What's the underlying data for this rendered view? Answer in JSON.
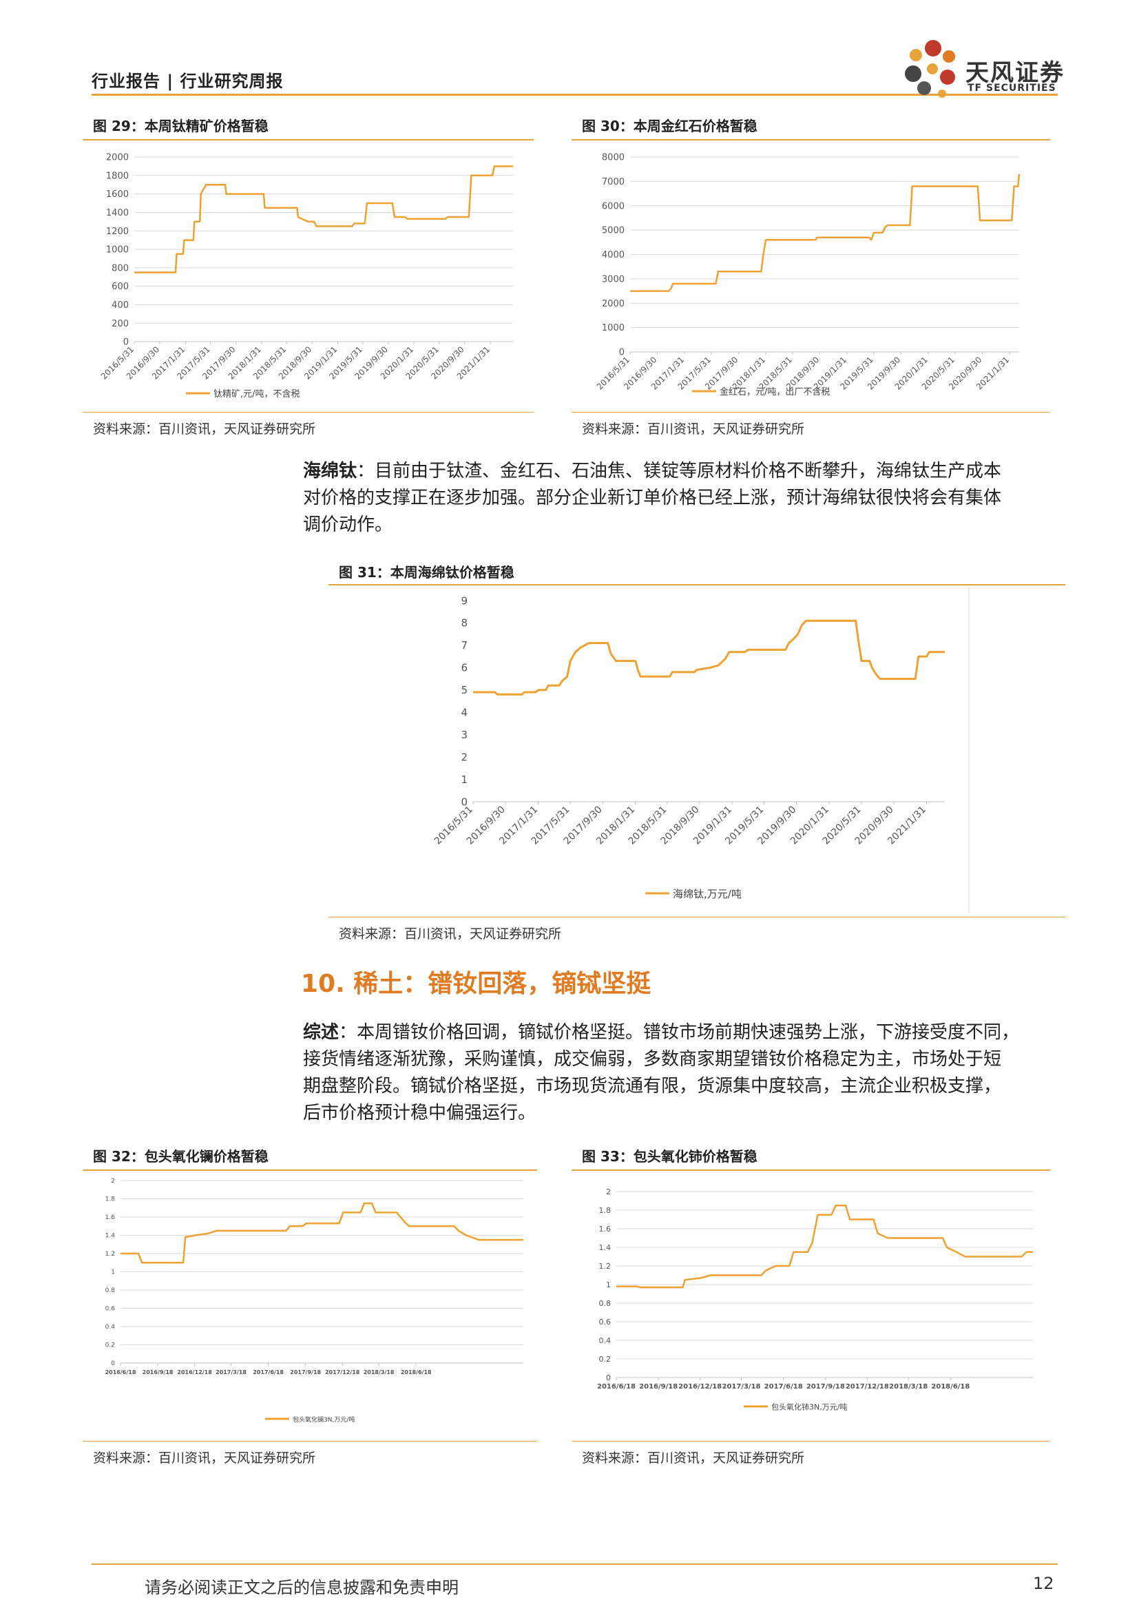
{
  "header": {
    "title": "行业报告 | 行业研究周报"
  },
  "logo": {
    "cn": "天风证券",
    "en": "TF SECURITIES"
  },
  "figures": {
    "fig29": {
      "title": "图 29：本周钛精矿价格暂稳",
      "source": "资料来源：百川资讯，天风证券研究所"
    },
    "fig30": {
      "title": "图 30：本周金红石价格暂稳",
      "source": "资料来源：百川资讯，天风证券研究所"
    },
    "fig31": {
      "title": "图 31：本周海绵钛价格暂稳",
      "source": "资料来源：百川资讯，天风证券研究所"
    },
    "fig32": {
      "title": "图 32：包头氧化镧价格暂稳",
      "source": "资料来源：百川资讯，天风证券研究所"
    },
    "fig33": {
      "title": "图 33：包头氧化铈价格暂稳",
      "source": "资料来源：百川资讯，天风证券研究所"
    }
  },
  "paragraph1": {
    "lead": "海绵钛",
    "text": "：目前由于钛渣、金红石、石油焦、镁锭等原材料价格不断攀升，海绵钛生产成本对价格的支撑正在逐步加强。部分企业新订单价格已经上涨，预计海绵钛很快将会有集体调价动作。",
    "lines": [
      "：目前由于钛渣、金红石、石油焦、镁锭等原材料价格不断攀升，海绵钛生产成本",
      "对价格的支撑正在逐步加强。部分企业新订单价格已经上涨，预计海绵钛很快将会有集体",
      "调价动作。"
    ]
  },
  "section": {
    "heading": "10. 稀土：镨钕回落，镝铽坚挺"
  },
  "paragraph2": {
    "lead": "综述",
    "lines": [
      "：本周镨钕价格回调，镝铽价格坚挺。镨钕市场前期快速强势上涨，下游接受度不同，",
      "接货情绪逐渐犹豫，采购谨慎，成交偏弱，多数商家期望镨钕价格稳定为主，市场处于短",
      "期盘整阶段。镝铽价格坚挺，市场现货流通有限，货源集中度较高，主流企业积极支撑，",
      "后市价格预计稳中偏强运行。"
    ]
  },
  "footer": {
    "disclaimer": "请务必阅读正文之后的信息披露和免责申明",
    "page": "12"
  },
  "colors": {
    "accent": "#e8a33a",
    "line": "#f0a030",
    "heading": "#e07b22"
  },
  "chart_data": [
    {
      "id": "fig29",
      "type": "line",
      "step": true,
      "series": [
        {
          "name": "钛精矿,元/吨，不含税",
          "points": [
            [
              "2016/5/31",
              750
            ],
            [
              "2016/12/15",
              750
            ],
            [
              "2016/12/20",
              950
            ],
            [
              "2017/1/20",
              950
            ],
            [
              "2017/1/25",
              1100
            ],
            [
              "2017/3/10",
              1100
            ],
            [
              "2017/3/15",
              1300
            ],
            [
              "2017/4/10",
              1300
            ],
            [
              "2017/4/15",
              1600
            ],
            [
              "2017/5/10",
              1700
            ],
            [
              "2017/8/10",
              1700
            ],
            [
              "2017/8/15",
              1600
            ],
            [
              "2018/2/10",
              1600
            ],
            [
              "2018/2/15",
              1450
            ],
            [
              "2018/7/20",
              1450
            ],
            [
              "2018/7/25",
              1350
            ],
            [
              "2018/9/10",
              1300
            ],
            [
              "2018/10/10",
              1300
            ],
            [
              "2018/10/20",
              1250
            ],
            [
              "2019/4/10",
              1250
            ],
            [
              "2019/4/20",
              1280
            ],
            [
              "2019/6/10",
              1280
            ],
            [
              "2019/6/20",
              1500
            ],
            [
              "2019/10/20",
              1500
            ],
            [
              "2019/10/30",
              1350
            ],
            [
              "2019/12/20",
              1350
            ],
            [
              "2019/12/30",
              1330
            ],
            [
              "2020/7/1",
              1330
            ],
            [
              "2020/7/10",
              1350
            ],
            [
              "2020/10/20",
              1350
            ],
            [
              "2020/11/1",
              1800
            ],
            [
              "2021/2/10",
              1800
            ],
            [
              "2021/2/20",
              1900
            ],
            [
              "2021/5/20",
              1900
            ]
          ]
        }
      ],
      "x_ticks": [
        "2016/5/31",
        "2016/9/30",
        "2017/1/31",
        "2017/5/31",
        "2017/9/30",
        "2018/1/31",
        "2018/5/31",
        "2018/9/30",
        "2019/1/31",
        "2019/5/31",
        "2019/9/30",
        "2020/1/31",
        "2020/5/31",
        "2020/9/30",
        "2021/1/31"
      ],
      "ylim": [
        0,
        2000
      ],
      "y_ticks": [
        0,
        200,
        400,
        600,
        800,
        1000,
        1200,
        1400,
        1600,
        1800,
        2000
      ],
      "grid": true,
      "legend": "bottom"
    },
    {
      "id": "fig30",
      "type": "line",
      "step": true,
      "series": [
        {
          "name": "金红石，元/吨，出厂不含税",
          "points": [
            [
              "2016/5/31",
              2500
            ],
            [
              "2016/11/20",
              2500
            ],
            [
              "2016/12/1",
              2600
            ],
            [
              "2016/12/10",
              2800
            ],
            [
              "2017/6/20",
              2800
            ],
            [
              "2017/7/1",
              3300
            ],
            [
              "2018/1/10",
              3300
            ],
            [
              "2018/1/20",
              4000
            ],
            [
              "2018/1/31",
              4600
            ],
            [
              "2018/9/10",
              4600
            ],
            [
              "2018/9/20",
              4700
            ],
            [
              "2019/5/10",
              4700
            ],
            [
              "2019/5/20",
              4600
            ],
            [
              "2019/6/1",
              4900
            ],
            [
              "2019/7/10",
              4900
            ],
            [
              "2019/7/20",
              5100
            ],
            [
              "2019/8/1",
              5200
            ],
            [
              "2019/11/10",
              5200
            ],
            [
              "2019/11/20",
              6800
            ],
            [
              "2020/9/10",
              6800
            ],
            [
              "2020/9/20",
              5400
            ],
            [
              "2021/2/10",
              5400
            ],
            [
              "2021/2/20",
              6800
            ],
            [
              "2021/3/10",
              6800
            ],
            [
              "2021/3/15",
              7300
            ]
          ]
        }
      ],
      "x_ticks": [
        "2016/5/31",
        "2016/9/30",
        "2017/1/31",
        "2017/5/31",
        "2017/9/30",
        "2018/1/31",
        "2018/5/31",
        "2018/9/30",
        "2019/1/31",
        "2019/5/31",
        "2019/9/30",
        "2020/1/31",
        "2020/5/31",
        "2020/9/30",
        "2021/1/31"
      ],
      "ylim": [
        0,
        8000
      ],
      "y_ticks": [
        0,
        1000,
        2000,
        3000,
        4000,
        5000,
        6000,
        7000,
        8000
      ],
      "grid": true,
      "legend": "bottom"
    },
    {
      "id": "fig31",
      "type": "line",
      "step": true,
      "series": [
        {
          "name": "海绵钛,万元/吨",
          "points": [
            [
              "2016/5/31",
              4.9
            ],
            [
              "2016/8/20",
              4.9
            ],
            [
              "2016/9/1",
              4.8
            ],
            [
              "2016/12/1",
              4.8
            ],
            [
              "2016/12/10",
              4.9
            ],
            [
              "2017/1/20",
              4.9
            ],
            [
              "2017/2/1",
              5.0
            ],
            [
              "2017/3/1",
              5.0
            ],
            [
              "2017/3/10",
              5.2
            ],
            [
              "2017/4/20",
              5.2
            ],
            [
              "2017/5/1",
              5.4
            ],
            [
              "2017/5/20",
              5.6
            ],
            [
              "2017/6/1",
              6.3
            ],
            [
              "2017/6/20",
              6.7
            ],
            [
              "2017/7/10",
              6.9
            ],
            [
              "2017/7/25",
              7.0
            ],
            [
              "2017/8/10",
              7.1
            ],
            [
              "2017/10/20",
              7.1
            ],
            [
              "2017/11/1",
              6.6
            ],
            [
              "2017/11/20",
              6.3
            ],
            [
              "2018/2/1",
              6.3
            ],
            [
              "2018/2/10",
              5.9
            ],
            [
              "2018/2/20",
              5.6
            ],
            [
              "2018/6/10",
              5.6
            ],
            [
              "2018/6/20",
              5.8
            ],
            [
              "2018/9/10",
              5.8
            ],
            [
              "2018/9/20",
              5.9
            ],
            [
              "2018/11/10",
              6.0
            ],
            [
              "2018/12/10",
              6.1
            ],
            [
              "2019/1/5",
              6.4
            ],
            [
              "2019/1/20",
              6.7
            ],
            [
              "2019/3/20",
              6.7
            ],
            [
              "2019/4/1",
              6.8
            ],
            [
              "2019/8/20",
              6.8
            ],
            [
              "2019/9/1",
              7.1
            ],
            [
              "2019/9/20",
              7.3
            ],
            [
              "2019/10/5",
              7.5
            ],
            [
              "2019/10/20",
              7.9
            ],
            [
              "2019/11/5",
              8.1
            ],
            [
              "2020/5/10",
              8.1
            ],
            [
              "2020/5/20",
              7.2
            ],
            [
              "2020/6/1",
              6.3
            ],
            [
              "2020/7/1",
              6.3
            ],
            [
              "2020/7/10",
              6.0
            ],
            [
              "2020/7/20",
              5.8
            ],
            [
              "2020/8/1",
              5.6
            ],
            [
              "2020/8/10",
              5.5
            ],
            [
              "2020/12/20",
              5.5
            ],
            [
              "2021/1/1",
              6.5
            ],
            [
              "2021/2/1",
              6.5
            ],
            [
              "2021/2/10",
              6.7
            ],
            [
              "2021/4/10",
              6.7
            ]
          ]
        }
      ],
      "x_ticks": [
        "2016/5/31",
        "2016/9/30",
        "2017/1/31",
        "2017/5/31",
        "2017/9/30",
        "2018/1/31",
        "2018/5/31",
        "2018/9/30",
        "2019/1/31",
        "2019/5/31",
        "2019/9/30",
        "2020/1/31",
        "2020/5/31",
        "2020/9/30",
        "2021/1/31"
      ],
      "ylim": [
        0,
        9
      ],
      "y_ticks": [
        0,
        1,
        2,
        3,
        4,
        5,
        6,
        7,
        8,
        9
      ],
      "grid": false,
      "legend": "bottom"
    },
    {
      "id": "fig32",
      "type": "line",
      "step": true,
      "series": [
        {
          "name": "包头氧化镧3N,万元/吨",
          "points": [
            [
              "2016/6/18",
              1.2
            ],
            [
              "2016/8/1",
              1.2
            ],
            [
              "2016/8/10",
              1.1
            ],
            [
              "2016/11/20",
              1.1
            ],
            [
              "2016/11/25",
              1.38
            ],
            [
              "2016/12/20",
              1.4
            ],
            [
              "2017/1/20",
              1.42
            ],
            [
              "2017/2/10",
              1.45
            ],
            [
              "2017/8/1",
              1.45
            ],
            [
              "2017/8/10",
              1.5
            ],
            [
              "2017/9/10",
              1.5
            ],
            [
              "2017/9/20",
              1.53
            ],
            [
              "2017/12/10",
              1.53
            ],
            [
              "2017/12/20",
              1.65
            ],
            [
              "2018/2/1",
              1.65
            ],
            [
              "2018/2/10",
              1.75
            ],
            [
              "2018/3/1",
              1.75
            ],
            [
              "2018/3/10",
              1.65
            ],
            [
              "2018/5/1",
              1.65
            ],
            [
              "2018/5/20",
              1.55
            ],
            [
              "2018/6/1",
              1.5
            ],
            [
              "2018/9/20",
              1.5
            ],
            [
              "2018/10/1",
              1.45
            ],
            [
              "2018/10/20",
              1.4
            ],
            [
              "2018/11/20",
              1.35
            ],
            [
              "2019/3/10",
              1.35
            ]
          ]
        }
      ],
      "x_ticks": [
        "2016/6/18",
        "2016/9/18",
        "2016/12/18",
        "2017/3/18",
        "2017/6/18",
        "2017/9/18",
        "2017/12/18",
        "2018/3/18",
        "2018/6/18"
      ],
      "ylim": [
        0,
        2
      ],
      "y_ticks": [
        0,
        0.2,
        0.4,
        0.6,
        0.8,
        1,
        1.2,
        1.4,
        1.6,
        1.8,
        2
      ],
      "grid": true,
      "legend": "bottom"
    },
    {
      "id": "fig33",
      "type": "line",
      "step": true,
      "series": [
        {
          "name": "包头氧化铈3N,万元/吨",
          "points": [
            [
              "2016/6/18",
              0.98
            ],
            [
              "2016/8/1",
              0.98
            ],
            [
              "2016/8/10",
              0.97
            ],
            [
              "2016/11/10",
              0.97
            ],
            [
              "2016/11/15",
              1.05
            ],
            [
              "2016/12/20",
              1.07
            ],
            [
              "2017/1/10",
              1.1
            ],
            [
              "2017/5/1",
              1.1
            ],
            [
              "2017/5/10",
              1.15
            ],
            [
              "2017/6/1",
              1.2
            ],
            [
              "2017/7/1",
              1.2
            ],
            [
              "2017/7/10",
              1.35
            ],
            [
              "2017/8/10",
              1.35
            ],
            [
              "2017/8/20",
              1.45
            ],
            [
              "2017/9/1",
              1.75
            ],
            [
              "2017/10/1",
              1.75
            ],
            [
              "2017/10/10",
              1.85
            ],
            [
              "2017/11/1",
              1.85
            ],
            [
              "2017/11/10",
              1.7
            ],
            [
              "2018/1/1",
              1.7
            ],
            [
              "2018/1/10",
              1.55
            ],
            [
              "2018/2/1",
              1.5
            ],
            [
              "2018/6/1",
              1.5
            ],
            [
              "2018/6/10",
              1.4
            ],
            [
              "2018/7/1",
              1.35
            ],
            [
              "2018/7/20",
              1.3
            ],
            [
              "2018/11/20",
              1.3
            ],
            [
              "2018/12/1",
              1.35
            ],
            [
              "2018/12/15",
              1.35
            ]
          ]
        }
      ],
      "x_ticks": [
        "2016/6/18",
        "2016/9/18",
        "2016/12/18",
        "2017/3/18",
        "2017/6/18",
        "2017/9/18",
        "2017/12/18",
        "2018/3/18",
        "2018/6/18"
      ],
      "ylim": [
        0,
        2
      ],
      "y_ticks": [
        0,
        0.2,
        0.4,
        0.6,
        0.8,
        1,
        1.2,
        1.4,
        1.6,
        1.8,
        2
      ],
      "grid": true,
      "legend": "bottom"
    }
  ]
}
